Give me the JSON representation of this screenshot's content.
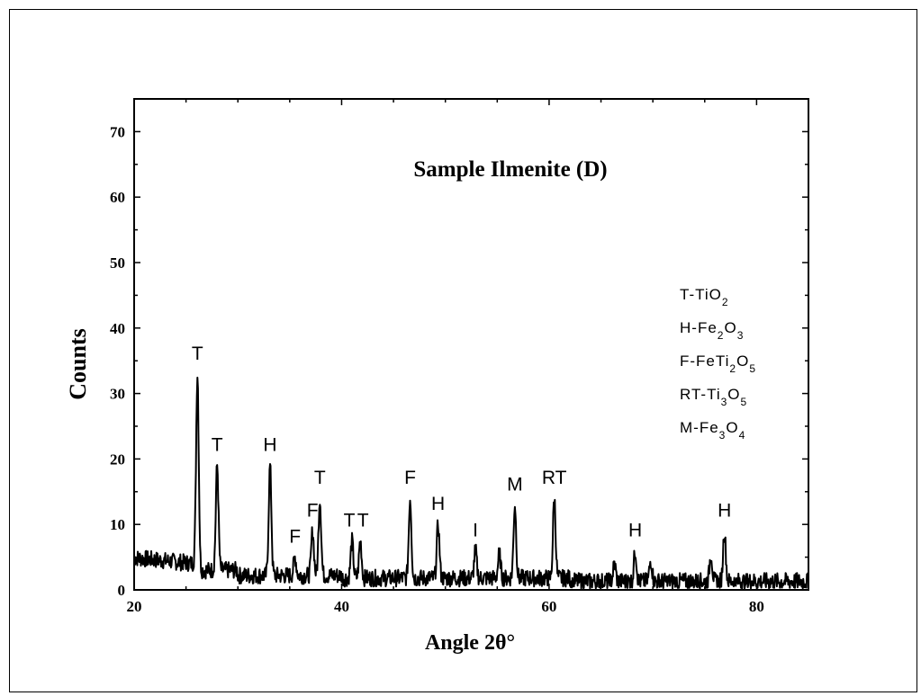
{
  "chart_data": {
    "type": "line",
    "title": "Sample Ilmenite (D)",
    "xlabel": "Angle 2θ°",
    "ylabel": "Counts",
    "xlim": [
      20,
      85
    ],
    "ylim": [
      0,
      75
    ],
    "xticks": [
      20,
      40,
      60,
      80
    ],
    "yticks": [
      0,
      10,
      20,
      30,
      40,
      50,
      60,
      70
    ],
    "grid": false,
    "legend_position": "right",
    "legend": [
      {
        "prefix": "T-TiO",
        "parts": [
          [
            "2",
            "sub"
          ]
        ]
      },
      {
        "prefix": "H-Fe",
        "parts": [
          [
            "2",
            "sub"
          ],
          [
            "O",
            "base"
          ],
          [
            "3",
            "sub"
          ]
        ]
      },
      {
        "prefix": "F-FeTi",
        "parts": [
          [
            "2",
            "sub"
          ],
          [
            "O",
            "base"
          ],
          [
            "5",
            "sub"
          ]
        ]
      },
      {
        "prefix": "RT-Ti",
        "parts": [
          [
            "3",
            "sub"
          ],
          [
            "O",
            "base"
          ],
          [
            "5",
            "sub"
          ]
        ]
      },
      {
        "prefix": "M-Fe",
        "parts": [
          [
            "3",
            "sub"
          ],
          [
            "O",
            "base"
          ],
          [
            "4",
            "sub"
          ]
        ]
      }
    ],
    "peaks": [
      {
        "x": 26.1,
        "y": 33,
        "label": "T"
      },
      {
        "x": 28.0,
        "y": 19,
        "label": "T"
      },
      {
        "x": 33.1,
        "y": 19,
        "label": "H"
      },
      {
        "x": 35.5,
        "y": 5,
        "label": "F"
      },
      {
        "x": 37.2,
        "y": 9,
        "label": "F"
      },
      {
        "x": 37.9,
        "y": 14,
        "label": "T"
      },
      {
        "x": 41.0,
        "y": 7.5,
        "label": "T"
      },
      {
        "x": 41.8,
        "y": 7.5,
        "label": "T"
      },
      {
        "x": 46.6,
        "y": 14,
        "label": "F"
      },
      {
        "x": 49.3,
        "y": 10,
        "label": "H"
      },
      {
        "x": 52.9,
        "y": 6,
        "label": "I"
      },
      {
        "x": 55.2,
        "y": 5.5,
        "label": ""
      },
      {
        "x": 56.7,
        "y": 13,
        "label": "M"
      },
      {
        "x": 60.5,
        "y": 14,
        "label": "RT"
      },
      {
        "x": 66.3,
        "y": 4,
        "label": ""
      },
      {
        "x": 68.3,
        "y": 6,
        "label": "H"
      },
      {
        "x": 69.8,
        "y": 4.5,
        "label": ""
      },
      {
        "x": 75.6,
        "y": 5.5,
        "label": ""
      },
      {
        "x": 76.9,
        "y": 9,
        "label": "H"
      }
    ]
  }
}
